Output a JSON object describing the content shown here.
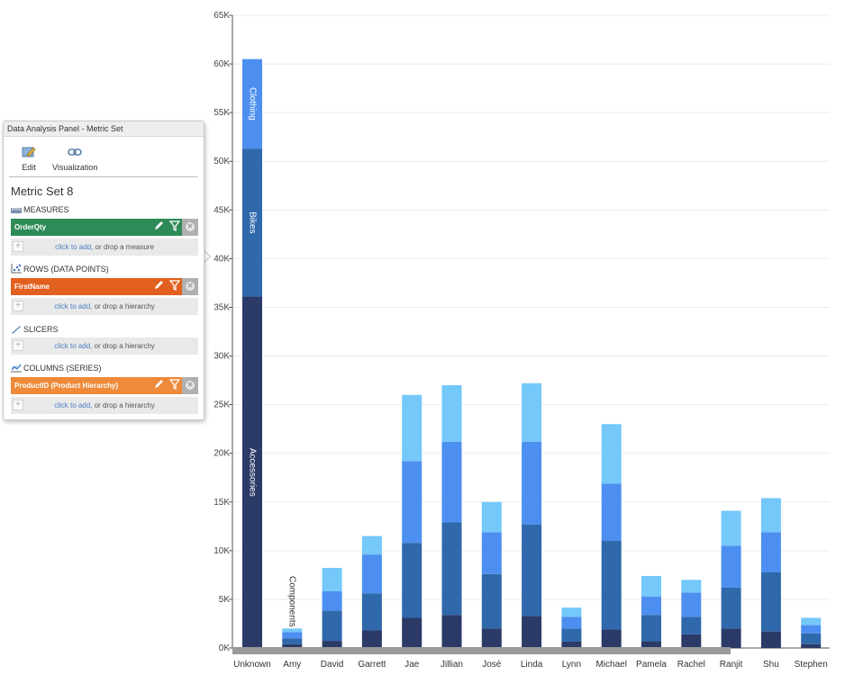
{
  "chart_data": {
    "type": "bar",
    "stacked": true,
    "categories": [
      "Unknown",
      "Amy",
      "David",
      "Garrett",
      "Jae",
      "Jillian",
      "José",
      "Linda",
      "Lynn",
      "Michael",
      "Pamela",
      "Rachel",
      "Ranjit",
      "Shu",
      "Stephen"
    ],
    "series": [
      {
        "name": "Accessories",
        "color": "#2b3a67",
        "values": [
          36100,
          380,
          730,
          1800,
          3100,
          3400,
          2000,
          3300,
          650,
          1900,
          700,
          1400,
          2000,
          1700,
          400
        ]
      },
      {
        "name": "Bikes",
        "color": "#2f68ab",
        "values": [
          15200,
          620,
          3100,
          3800,
          7700,
          9500,
          5600,
          9400,
          1350,
          9100,
          2700,
          1800,
          4200,
          6100,
          1100
        ]
      },
      {
        "name": "Clothing",
        "color": "#4d8ff0",
        "values": [
          9200,
          620,
          2000,
          4000,
          8400,
          8300,
          4300,
          8500,
          1200,
          5900,
          1900,
          2500,
          4300,
          4100,
          850
        ]
      },
      {
        "name": "Components",
        "color": "#74c8fa",
        "values": [
          0,
          380,
          2400,
          1900,
          6800,
          5800,
          3100,
          6000,
          950,
          6100,
          2100,
          1300,
          3600,
          3500,
          750
        ]
      }
    ],
    "segment_labels": [
      {
        "category": "Unknown",
        "series": "Accessories",
        "text": "Accessories"
      },
      {
        "category": "Unknown",
        "series": "Bikes",
        "text": "Bikes"
      },
      {
        "category": "Unknown",
        "series": "Clothing",
        "text": "Clothing"
      },
      {
        "category": "Amy",
        "series": "Components",
        "text": "Components"
      }
    ],
    "yticks": [
      0,
      5000,
      10000,
      15000,
      20000,
      25000,
      30000,
      35000,
      40000,
      45000,
      50000,
      55000,
      60000,
      65000
    ],
    "ytick_labels": [
      "0K",
      "5K",
      "10K",
      "15K",
      "20K",
      "25K",
      "30K",
      "35K",
      "40K",
      "45K",
      "50K",
      "55K",
      "60K",
      "65K"
    ],
    "ylim": [
      0,
      65000
    ],
    "grid": true,
    "title": "",
    "xlabel": "",
    "ylabel": ""
  },
  "panel": {
    "title": "Data Analysis Panel - Metric Set",
    "edit_label": "Edit",
    "viz_label": "Visualization",
    "metric_set_name": "Metric Set 8",
    "measures": {
      "heading": "MEASURES",
      "pill": "OrderQty",
      "pill_color": "#2e8b57",
      "add_link": "click to add,",
      "add_rest": " or drop a measure"
    },
    "rows": {
      "heading": "ROWS (DATA POINTS)",
      "pill": "FirstName",
      "pill_color": "#e2601f",
      "add_link": "click to add,",
      "add_rest": " or drop a hierarchy"
    },
    "slicers": {
      "heading": "SLICERS",
      "add_link": "click to add,",
      "add_rest": " or drop a hierarchy"
    },
    "columns": {
      "heading": "COLUMNS (SERIES)",
      "pill": "ProductID (Product Hierarchy)",
      "pill_color": "#ee8a39",
      "add_link": "click to add,",
      "add_rest": " or drop a hierarchy"
    }
  }
}
